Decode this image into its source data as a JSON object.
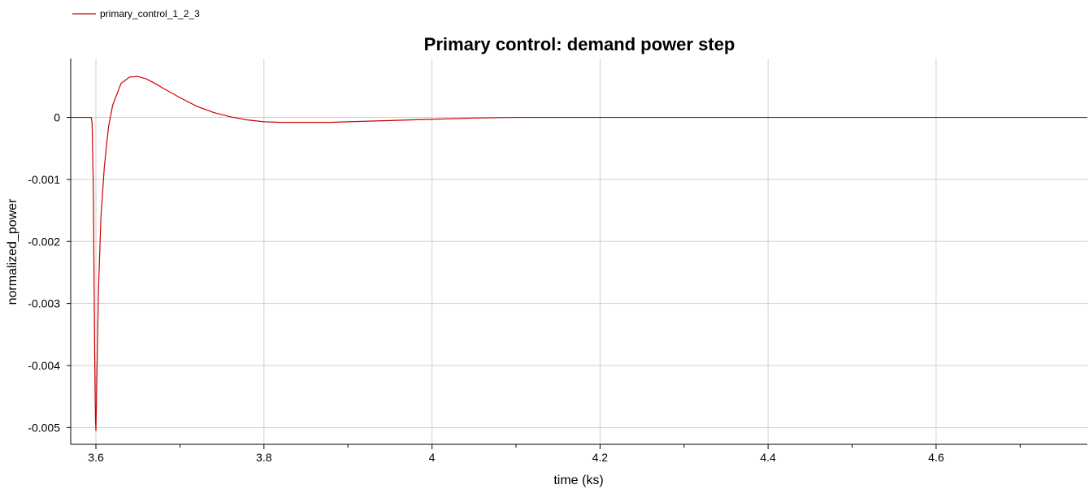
{
  "chart_data": {
    "type": "line",
    "title": "Primary control: demand power step",
    "xlabel": "time (ks)",
    "ylabel": "normalized_power",
    "xlim": [
      3.57,
      4.78
    ],
    "ylim": [
      -0.00527,
      0.00095
    ],
    "x_ticks": [
      3.6,
      3.8,
      4,
      4.2,
      4.4,
      4.6
    ],
    "x_tick_labels": [
      "3.6",
      "3.8",
      "4",
      "4.2",
      "4.4",
      "4.6"
    ],
    "y_ticks": [
      0,
      -0.001,
      -0.002,
      -0.003,
      -0.004,
      -0.005
    ],
    "y_tick_labels": [
      "0",
      "-0.001",
      "-0.002",
      "-0.003",
      "-0.004",
      "-0.005"
    ],
    "grid": true,
    "legend_position": "top-left",
    "series": [
      {
        "name": "primary_control_1_2_3",
        "color": "#cc0000",
        "x": [
          3.57,
          3.5945,
          3.5955,
          3.597,
          3.5985,
          3.5995,
          3.6,
          3.601,
          3.603,
          3.606,
          3.61,
          3.615,
          3.62,
          3.63,
          3.64,
          3.65,
          3.66,
          3.67,
          3.68,
          3.7,
          3.72,
          3.74,
          3.76,
          3.78,
          3.8,
          3.82,
          3.84,
          3.86,
          3.88,
          3.9,
          3.95,
          4.0,
          4.05,
          4.1,
          4.2,
          4.4,
          4.6,
          4.78
        ],
        "y": [
          0,
          0,
          -0.0001,
          -0.0012,
          -0.0038,
          -0.0049,
          -0.00505,
          -0.0043,
          -0.0028,
          -0.0016,
          -0.0008,
          -0.00015,
          0.0002,
          0.00055,
          0.00065,
          0.00066,
          0.00062,
          0.00055,
          0.00047,
          0.00032,
          0.00018,
          8e-05,
          1e-05,
          -4e-05,
          -7e-05,
          -8e-05,
          -8e-05,
          -8e-05,
          -8e-05,
          -7e-05,
          -5e-05,
          -3e-05,
          -1e-05,
          0,
          0,
          0,
          0,
          0
        ]
      }
    ]
  }
}
